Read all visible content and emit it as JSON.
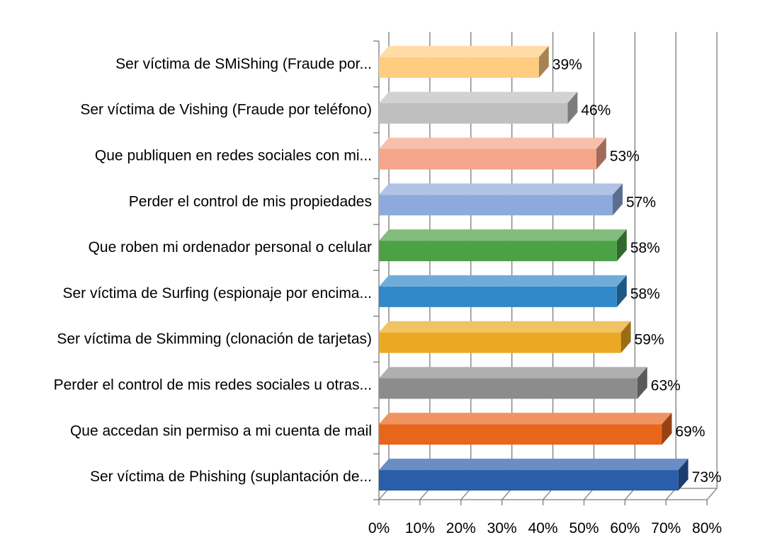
{
  "chart_data": {
    "type": "bar",
    "orientation": "horizontal",
    "style": "3d",
    "categories": [
      "Ser víctima de SMiShing (Fraude por...",
      "Ser víctima de Vishing (Fraude por teléfono)",
      "Que publiquen en redes sociales con mi...",
      "Perder el control de mis propiedades",
      "Que roben mi ordenador personal o celular",
      "Ser víctima de Surfing (espionaje por encima...",
      "Ser víctima de Skimming (clonación de tarjetas)",
      "Perder el control de mis redes sociales u otras...",
      "Que accedan sin permiso a mi cuenta de mail",
      "Ser víctima de Phishing (suplantación de..."
    ],
    "values": [
      39,
      46,
      53,
      57,
      58,
      58,
      59,
      63,
      69,
      73
    ],
    "value_labels": [
      "39%",
      "46%",
      "53%",
      "57%",
      "58%",
      "58%",
      "59%",
      "63%",
      "69%",
      "73%"
    ],
    "colors": [
      "#FFCC80",
      "#BFBFBF",
      "#F4A58A",
      "#8EA9DB",
      "#4CA145",
      "#3388C9",
      "#EBA923",
      "#8C8C8C",
      "#E8661C",
      "#2A5EAA"
    ],
    "xlim": [
      0,
      80
    ],
    "xticks": [
      0,
      10,
      20,
      30,
      40,
      50,
      60,
      70,
      80
    ],
    "xtick_labels": [
      "0%",
      "10%",
      "20%",
      "30%",
      "40%",
      "50%",
      "60%",
      "70%",
      "80%"
    ],
    "title": "",
    "xlabel": "",
    "ylabel": "",
    "grid": true,
    "legend": false
  }
}
